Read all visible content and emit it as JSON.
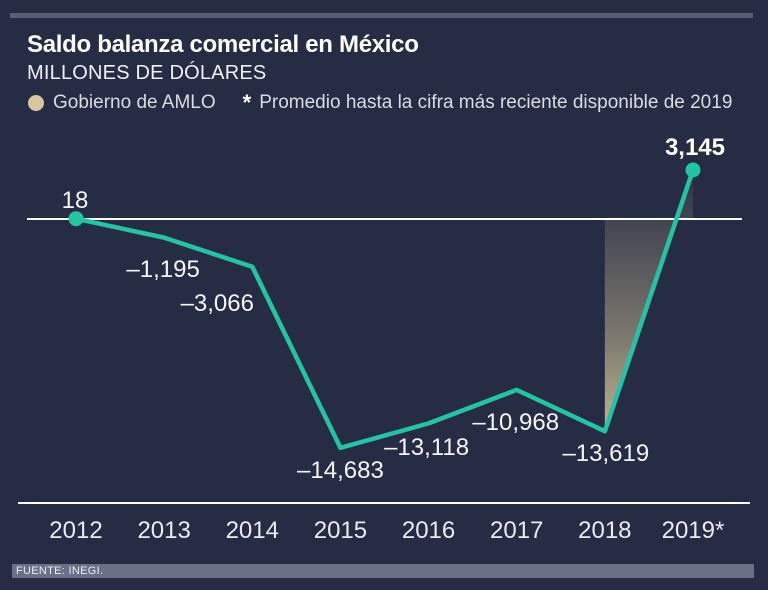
{
  "title": "Saldo balanza comercial en México",
  "subtitle": "MILLONES DE DÓLARES",
  "legend": {
    "amlo_label": "Gobierno de AMLO",
    "asterisk": "*",
    "note": "Promedio hasta la cifra más reciente disponible de 2019"
  },
  "source": "FUENTE: INEGI.",
  "colors": {
    "background": "#262C44",
    "accent_bar": "#575E73",
    "line": "#22C5A3",
    "beige": "#D8C79C",
    "gradient_base": "#C6BA94",
    "axis": "#FFFFFF",
    "value_label": "#F5F6F8",
    "tick_label": "#E9EBF1",
    "source_strip_bg": "#6A7187",
    "source_strip_text": "#EDEFF4"
  },
  "chart_data": {
    "type": "line",
    "title": "Saldo balanza comercial en México",
    "ylabel": "MILLONES DE DÓLARES",
    "x": [
      "2012",
      "2013",
      "2014",
      "2015",
      "2016",
      "2017",
      "2018",
      "2019*"
    ],
    "series": [
      {
        "name": "Saldo balanza comercial",
        "values": [
          18,
          -1195,
          -3066,
          -14683,
          -13118,
          -10968,
          -13619,
          3145
        ]
      }
    ],
    "point_labels": [
      "18",
      "–1,195",
      "–3,066",
      "–14,683",
      "–13,118",
      "–10,968",
      "–13,619",
      "3,145"
    ],
    "baseline": 0,
    "ylim": [
      -16500,
      4500
    ],
    "grid": false,
    "legend_position": "top",
    "highlight": {
      "label": "Gobierno de AMLO",
      "x_range": [
        "2018",
        "2019*"
      ],
      "style": "vertical-gradient-fill-to-baseline"
    },
    "endpoint_markers": [
      "2012",
      "2019*"
    ]
  }
}
